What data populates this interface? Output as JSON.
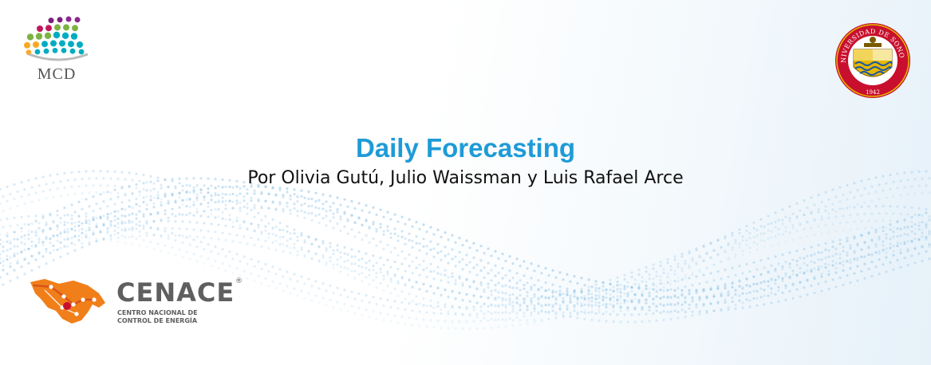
{
  "slide": {
    "title": "Daily Forecasting",
    "subtitle": "Por Olivia Gutú, Julio Waissman y Luis Rafael Arce"
  },
  "logos": {
    "mcd": {
      "text": "MCD",
      "icon": "mcd-dot-arc-icon"
    },
    "unison": {
      "ring_text": "UNIVERSIDAD DE SONORA",
      "year": "1942",
      "icon": "university-seal-icon"
    },
    "cenace": {
      "name": "CENACE",
      "registered": "®",
      "line1": "CENTRO NACIONAL DE",
      "line2": "CONTROL DE ENERGÍA",
      "icon": "cenace-map-emblem-icon"
    }
  },
  "colors": {
    "title": "#1e9bd7",
    "subtitle": "#111111",
    "wave_dots": "#8fc3e8",
    "seal_red": "#c8102e",
    "seal_gold": "#e6b800",
    "cenace_orange": "#f07f1a",
    "cenace_gray": "#5f5f5f"
  }
}
